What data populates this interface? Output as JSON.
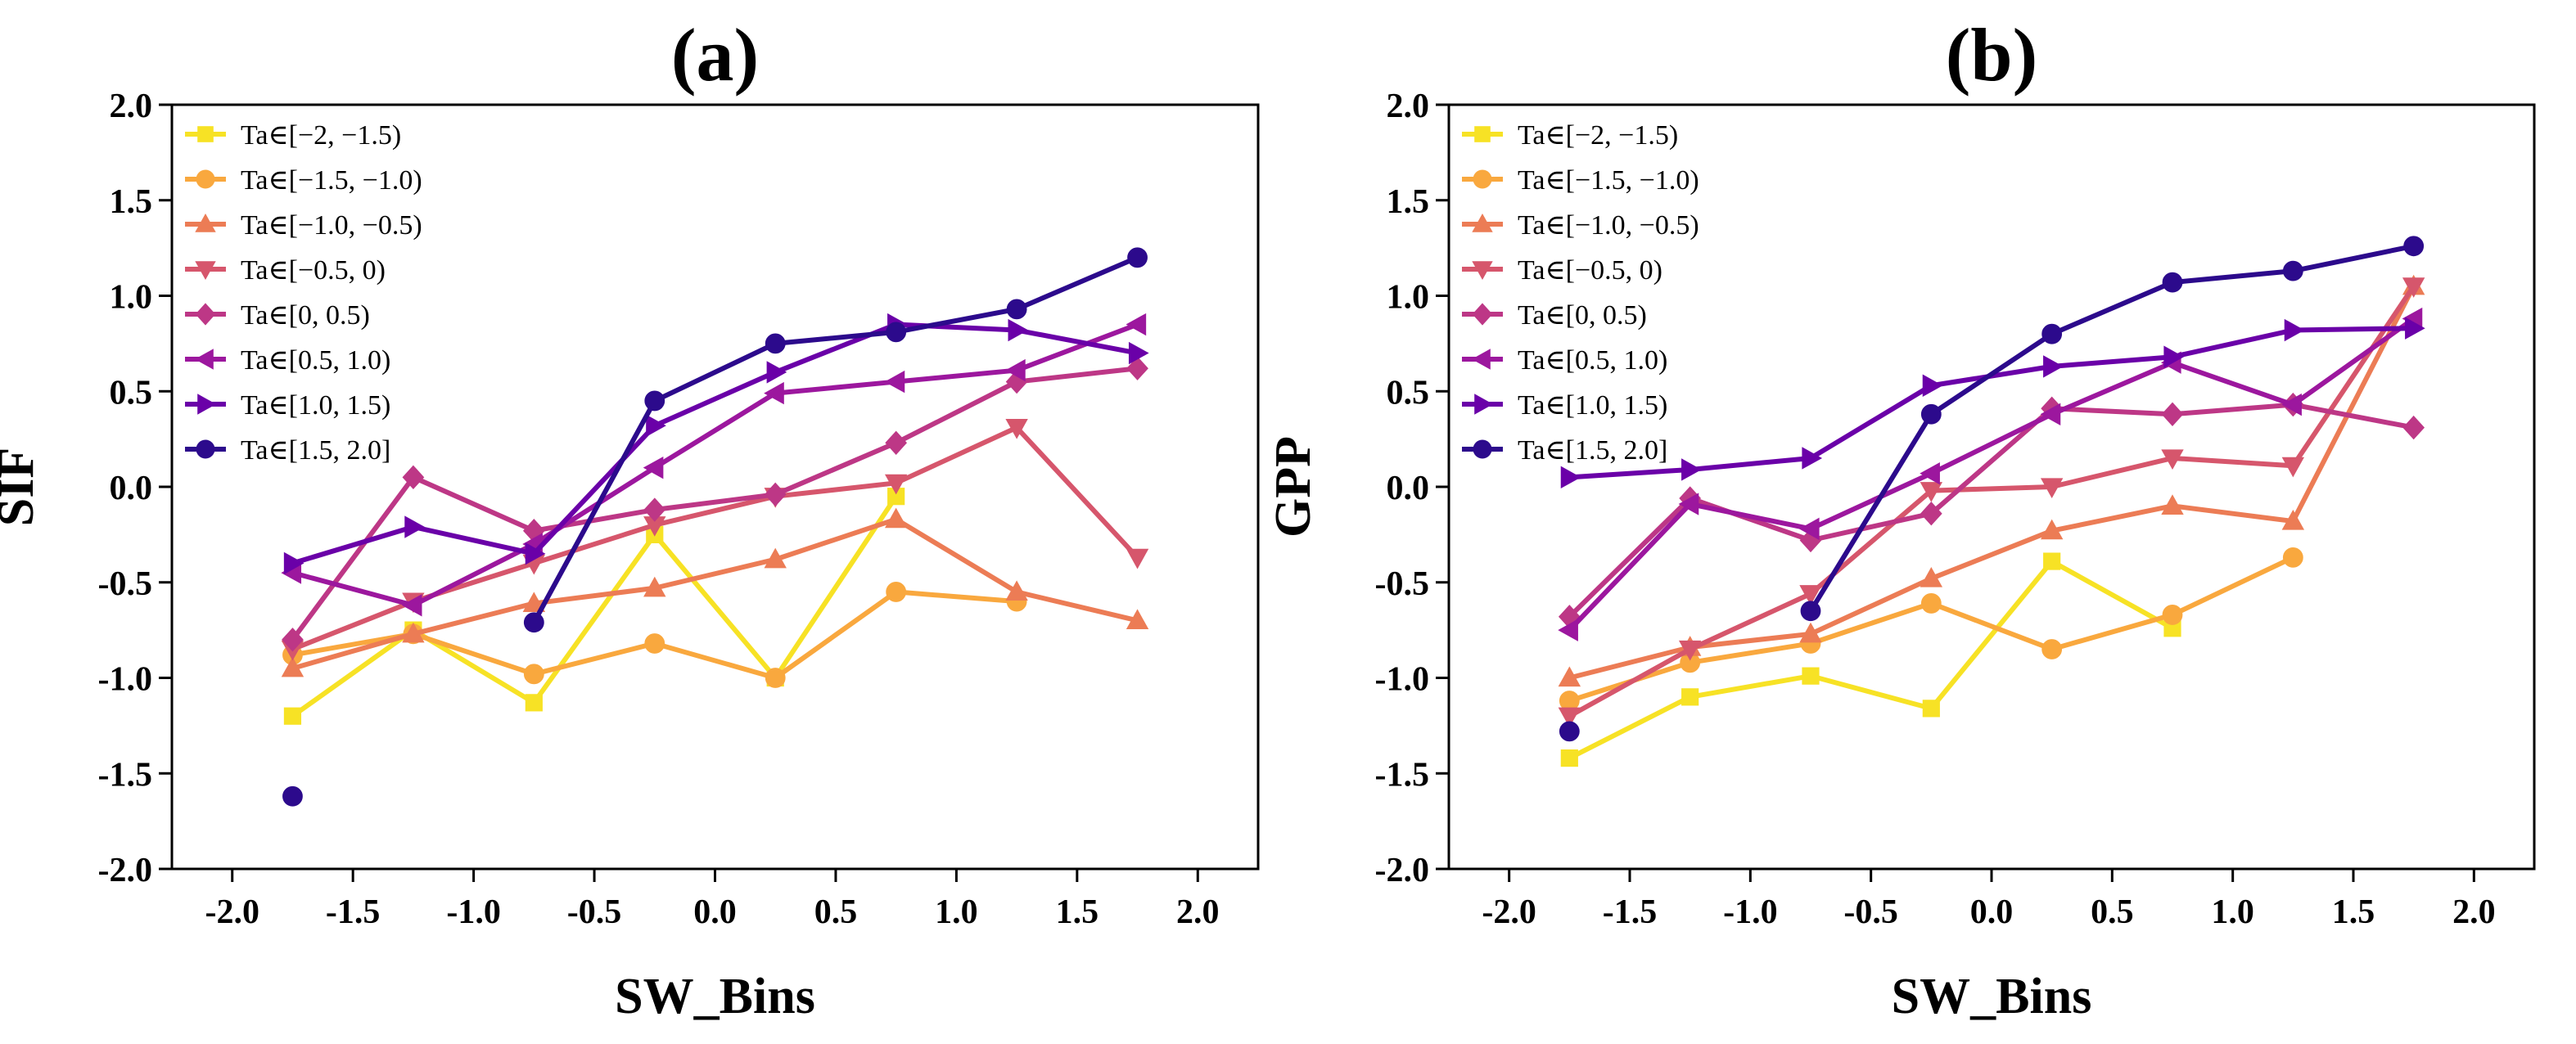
{
  "chart_data": [
    {
      "type": "line",
      "title": "(a)",
      "xlabel": "SW_Bins",
      "ylabel": "SIF",
      "xlim": [
        -2.25,
        2.25
      ],
      "ylim": [
        -2.0,
        2.0
      ],
      "xticks": [
        -2.0,
        -1.5,
        -1.0,
        -0.5,
        0.0,
        0.5,
        1.0,
        1.5,
        2.0
      ],
      "yticks": [
        -2.0,
        -1.5,
        -1.0,
        -0.5,
        0.0,
        0.5,
        1.0,
        1.5,
        2.0
      ],
      "x": [
        -1.75,
        -1.25,
        -0.75,
        -0.25,
        0.25,
        0.75,
        1.25,
        1.75
      ],
      "series": [
        {
          "name": "Ta∈[−2, −1.5)",
          "color": "#f7e225",
          "marker": "square",
          "values": [
            -1.2,
            -0.75,
            -1.13,
            -0.25,
            -1.0,
            -0.05,
            null,
            null
          ]
        },
        {
          "name": "Ta∈[−1.5, −1.0)",
          "color": "#f9a83e",
          "marker": "circle",
          "values": [
            -0.88,
            -0.77,
            -0.98,
            -0.82,
            -1.0,
            -0.55,
            -0.6,
            null
          ]
        },
        {
          "name": "Ta∈[−1.0, −0.5)",
          "color": "#ec7c55",
          "marker": "triangle-up",
          "values": [
            -0.95,
            -0.77,
            -0.61,
            -0.53,
            -0.38,
            -0.17,
            -0.55,
            -0.7
          ]
        },
        {
          "name": "Ta∈[−0.5, 0)",
          "color": "#d6566c",
          "marker": "triangle-down",
          "values": [
            -0.85,
            -0.6,
            -0.4,
            -0.2,
            -0.05,
            0.02,
            0.31,
            -0.37
          ]
        },
        {
          "name": "Ta∈[0, 0.5)",
          "color": "#bd3786",
          "marker": "diamond",
          "values": [
            -0.8,
            0.05,
            -0.23,
            -0.12,
            -0.04,
            0.23,
            0.55,
            0.62
          ]
        },
        {
          "name": "Ta∈[0.5, 1.0)",
          "color": "#9c179e",
          "marker": "triangle-left",
          "values": [
            -0.45,
            -0.62,
            -0.3,
            0.1,
            0.49,
            0.55,
            0.61,
            0.85
          ]
        },
        {
          "name": "Ta∈[1.0, 1.5)",
          "color": "#6a00a8",
          "marker": "triangle-right",
          "values": [
            -0.4,
            -0.21,
            -0.35,
            0.32,
            0.6,
            0.85,
            0.82,
            0.7
          ]
        },
        {
          "name": "Ta∈[1.5, 2.0]",
          "color": "#2c0a8c",
          "marker": "circle",
          "values": [
            -1.62,
            null,
            -0.71,
            0.45,
            0.75,
            0.81,
            0.93,
            1.2
          ]
        }
      ]
    },
    {
      "type": "line",
      "title": "(b)",
      "xlabel": "SW_Bins",
      "ylabel": "GPP",
      "xlim": [
        -2.25,
        2.25
      ],
      "ylim": [
        -2.0,
        2.0
      ],
      "xticks": [
        -2.0,
        -1.5,
        -1.0,
        -0.5,
        0.0,
        0.5,
        1.0,
        1.5,
        2.0
      ],
      "yticks": [
        -2.0,
        -1.5,
        -1.0,
        -0.5,
        0.0,
        0.5,
        1.0,
        1.5,
        2.0
      ],
      "x": [
        -1.75,
        -1.25,
        -0.75,
        -0.25,
        0.25,
        0.75,
        1.25,
        1.75
      ],
      "series": [
        {
          "name": "Ta∈[−2, −1.5)",
          "color": "#f7e225",
          "marker": "square",
          "values": [
            -1.42,
            -1.1,
            -0.99,
            -1.16,
            -0.39,
            -0.74,
            null,
            null
          ]
        },
        {
          "name": "Ta∈[−1.5, −1.0)",
          "color": "#f9a83e",
          "marker": "circle",
          "values": [
            -1.12,
            -0.92,
            -0.82,
            -0.61,
            -0.85,
            -0.67,
            -0.37,
            null
          ]
        },
        {
          "name": "Ta∈[−1.0, −0.5)",
          "color": "#ec7c55",
          "marker": "triangle-up",
          "values": [
            -1.0,
            -0.84,
            -0.77,
            -0.48,
            -0.23,
            -0.1,
            -0.18,
            1.05
          ]
        },
        {
          "name": "Ta∈[−0.5, 0)",
          "color": "#d6566c",
          "marker": "triangle-down",
          "values": [
            -1.2,
            -0.85,
            -0.56,
            -0.02,
            0.0,
            0.15,
            0.11,
            1.05
          ]
        },
        {
          "name": "Ta∈[0, 0.5)",
          "color": "#bd3786",
          "marker": "diamond",
          "values": [
            -0.68,
            -0.06,
            -0.28,
            -0.14,
            0.41,
            0.38,
            0.43,
            0.31
          ]
        },
        {
          "name": "Ta∈[0.5, 1.0)",
          "color": "#9c179e",
          "marker": "triangle-left",
          "values": [
            -0.75,
            -0.09,
            -0.22,
            0.07,
            0.38,
            0.65,
            0.43,
            0.88
          ]
        },
        {
          "name": "Ta∈[1.0, 1.5)",
          "color": "#6a00a8",
          "marker": "triangle-right",
          "values": [
            0.05,
            0.09,
            0.15,
            0.53,
            0.63,
            0.68,
            0.82,
            0.83
          ]
        },
        {
          "name": "Ta∈[1.5, 2.0]",
          "color": "#2c0a8c",
          "marker": "circle",
          "values": [
            -1.28,
            null,
            -0.65,
            0.38,
            0.8,
            1.07,
            1.13,
            1.26
          ]
        }
      ]
    }
  ]
}
